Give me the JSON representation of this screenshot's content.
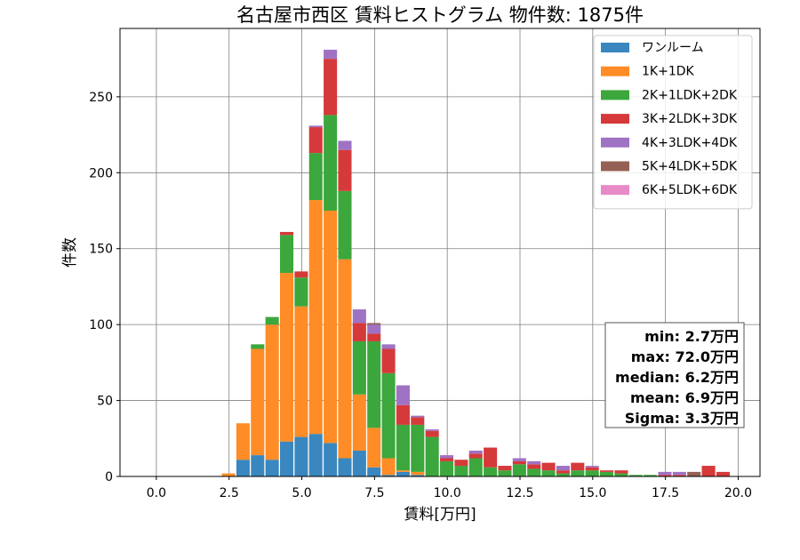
{
  "chart_data": {
    "type": "bar",
    "stacked": true,
    "title": "名古屋市西区 賃料ヒストグラム  物件数: 1875件",
    "xlabel": "賃料[万円]",
    "ylabel": "件数",
    "xlim": [
      -1.25,
      20.75
    ],
    "ylim": [
      0,
      295
    ],
    "xticks": [
      0.0,
      2.5,
      5.0,
      7.5,
      10.0,
      12.5,
      15.0,
      17.5,
      20.0
    ],
    "xtick_labels": [
      "0.0",
      "2.5",
      "5.0",
      "7.5",
      "10.0",
      "12.5",
      "15.0",
      "17.5",
      "20.0"
    ],
    "yticks": [
      0,
      50,
      100,
      150,
      200,
      250
    ],
    "ytick_labels": [
      "0",
      "50",
      "100",
      "150",
      "200",
      "250"
    ],
    "grid": true,
    "legend_position": "top-right",
    "bin_width": 0.5,
    "bin_starts": [
      2.25,
      2.75,
      3.25,
      3.75,
      4.25,
      4.75,
      5.25,
      5.75,
      6.25,
      6.75,
      7.25,
      7.75,
      8.25,
      8.75,
      9.25,
      9.75,
      10.25,
      10.75,
      11.25,
      11.75,
      12.25,
      12.75,
      13.25,
      13.75,
      14.25,
      14.75,
      15.25,
      15.75,
      16.25,
      16.75,
      17.25,
      17.75,
      18.25,
      18.75,
      19.25,
      19.75
    ],
    "series": [
      {
        "name": "ワンルーム",
        "color": "#3a87bf",
        "values": [
          0,
          11,
          14,
          11,
          23,
          26,
          28,
          22,
          12,
          17,
          6,
          1,
          3,
          1,
          0,
          0,
          0,
          0,
          0,
          0,
          0,
          0,
          0,
          0,
          0,
          0,
          0,
          0,
          0,
          0,
          0,
          0,
          0,
          0,
          0,
          0
        ]
      },
      {
        "name": "1K+1DK",
        "color": "#ff8c26",
        "values": [
          2,
          24,
          70,
          89,
          111,
          86,
          154,
          153,
          131,
          37,
          26,
          11,
          1,
          2,
          0,
          0,
          0,
          0,
          0,
          0,
          0,
          0,
          0,
          0,
          0,
          0,
          0,
          0,
          0,
          0,
          0,
          0,
          0,
          0,
          0,
          0
        ]
      },
      {
        "name": "2K+1LDK+2DK",
        "color": "#3ca73c",
        "values": [
          0,
          0,
          3,
          5,
          25,
          19,
          31,
          63,
          45,
          35,
          57,
          56,
          30,
          31,
          26,
          10,
          7,
          12,
          6,
          4,
          8,
          5,
          4,
          2,
          4,
          4,
          3,
          2,
          1,
          1,
          0,
          0,
          0,
          0,
          0,
          0
        ]
      },
      {
        "name": "3K+2LDK+3DK",
        "color": "#d6393a",
        "values": [
          0,
          0,
          0,
          0,
          2,
          4,
          17,
          37,
          27,
          12,
          5,
          16,
          13,
          5,
          4,
          2,
          4,
          3,
          13,
          3,
          2,
          3,
          5,
          2,
          5,
          2,
          1,
          2,
          0,
          0,
          1,
          1,
          0,
          7,
          3,
          0
        ]
      },
      {
        "name": "4K+3LDK+4DK",
        "color": "#9f72c4",
        "values": [
          0,
          0,
          0,
          0,
          0,
          0,
          1,
          6,
          6,
          9,
          6,
          3,
          13,
          1,
          1,
          2,
          0,
          2,
          0,
          0,
          2,
          2,
          0,
          3,
          0,
          1,
          0,
          0,
          0,
          0,
          2,
          2,
          0,
          0,
          0,
          0
        ]
      },
      {
        "name": "5K+4LDK+5DK",
        "color": "#956055",
        "values": [
          0,
          0,
          0,
          0,
          0,
          0,
          0,
          0,
          0,
          0,
          1,
          0,
          0,
          0,
          0,
          0,
          0,
          0,
          0,
          0,
          0,
          0,
          0,
          0,
          0,
          0,
          0,
          0,
          0,
          0,
          0,
          0,
          3,
          0,
          0,
          0
        ]
      },
      {
        "name": "6K+5LDK+6DK",
        "color": "#e78ac6",
        "values": [
          0,
          0,
          0,
          0,
          0,
          0,
          0,
          0,
          0,
          0,
          0,
          0,
          0,
          0,
          0,
          0,
          0,
          0,
          0,
          0,
          0,
          0,
          0,
          0,
          0,
          0,
          0,
          0,
          0,
          0,
          0,
          0,
          0,
          0,
          0,
          0
        ]
      }
    ],
    "stats": [
      "min: 2.7万円",
      "max: 72.0万円",
      "median: 6.2万円",
      "mean: 6.9万円",
      "Sigma: 3.3万円"
    ]
  }
}
